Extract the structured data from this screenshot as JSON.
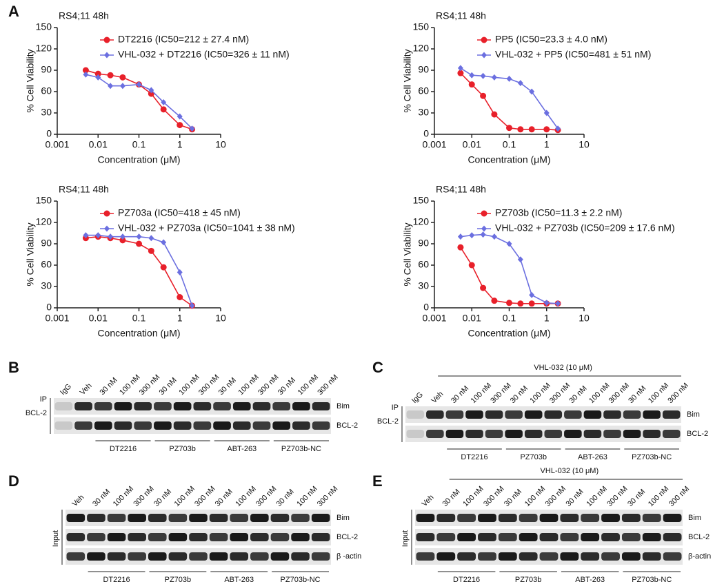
{
  "panel_labels": [
    "A",
    "B",
    "C",
    "D",
    "E"
  ],
  "chart_data": [
    {
      "type": "line",
      "title": "RS4;11  48h",
      "xlabel": "Concentration (μM)",
      "ylabel": "% Cell Viability",
      "xlog": true,
      "x": [
        0.005,
        0.01,
        0.02,
        0.04,
        0.1,
        0.2,
        0.4,
        1,
        2
      ],
      "xlim": [
        0.001,
        10
      ],
      "xticks": [
        0.001,
        0.01,
        0.1,
        1,
        10
      ],
      "ylim": [
        0,
        150
      ],
      "yticks": [
        0,
        30,
        60,
        90,
        120,
        150
      ],
      "series": [
        {
          "name": "DT2216 (IC50=212 ± 27.4 nM)",
          "color": "#e8202a",
          "marker": "circle",
          "values": [
            90,
            85,
            83,
            80,
            70,
            57,
            35,
            13,
            7
          ]
        },
        {
          "name": "VHL-032 + DT2216 (IC50=326 ± 11 nM)",
          "color": "#6b6fe0",
          "marker": "diamond",
          "values": [
            84,
            80,
            68,
            68,
            70,
            62,
            45,
            25,
            8
          ]
        }
      ]
    },
    {
      "type": "line",
      "title": "RS4;11  48h",
      "xlabel": "Concentration (μM)",
      "ylabel": "% Cell Viability",
      "xlog": true,
      "x": [
        0.005,
        0.01,
        0.02,
        0.04,
        0.1,
        0.2,
        0.4,
        1,
        2
      ],
      "xlim": [
        0.001,
        10
      ],
      "xticks": [
        0.001,
        0.01,
        0.1,
        1,
        10
      ],
      "ylim": [
        0,
        150
      ],
      "yticks": [
        0,
        30,
        60,
        90,
        120,
        150
      ],
      "series": [
        {
          "name": "PP5 (IC50=23.3 ± 4.0 nM)",
          "color": "#e8202a",
          "marker": "circle",
          "values": [
            86,
            70,
            54,
            28,
            9,
            7,
            7,
            7,
            6
          ]
        },
        {
          "name": "VHL-032 + PP5 (IC50=481 ± 51 nM)",
          "color": "#6b6fe0",
          "marker": "diamond",
          "values": [
            93,
            83,
            82,
            80,
            78,
            72,
            60,
            30,
            8
          ]
        }
      ]
    },
    {
      "type": "line",
      "title": "RS4;11  48h",
      "xlabel": "Concentration (μM)",
      "ylabel": "% Cell Viability",
      "xlog": true,
      "x": [
        0.005,
        0.01,
        0.02,
        0.04,
        0.1,
        0.2,
        0.4,
        1,
        2
      ],
      "xlim": [
        0.001,
        10
      ],
      "xticks": [
        0.001,
        0.01,
        0.1,
        1,
        10
      ],
      "ylim": [
        0,
        150
      ],
      "yticks": [
        0,
        30,
        60,
        90,
        120,
        150
      ],
      "series": [
        {
          "name": "PZ703a (IC50=418 ± 45 nM)",
          "color": "#e8202a",
          "marker": "circle",
          "values": [
            98,
            100,
            98,
            95,
            90,
            80,
            57,
            15,
            3
          ]
        },
        {
          "name": "VHL-032 + PZ703a (IC50=1041 ± 38 nM)",
          "color": "#6b6fe0",
          "marker": "diamond",
          "values": [
            102,
            102,
            100,
            100,
            100,
            98,
            92,
            50,
            3
          ]
        }
      ]
    },
    {
      "type": "line",
      "title": "RS4;11  48h",
      "xlabel": "Concentration (μM)",
      "ylabel": "% Cell Viability",
      "xlog": true,
      "x": [
        0.005,
        0.01,
        0.02,
        0.04,
        0.1,
        0.2,
        0.4,
        1,
        2
      ],
      "xlim": [
        0.001,
        10
      ],
      "xticks": [
        0.001,
        0.01,
        0.1,
        1,
        10
      ],
      "ylim": [
        0,
        150
      ],
      "yticks": [
        0,
        30,
        60,
        90,
        120,
        150
      ],
      "series": [
        {
          "name": "PZ703b (IC50=11.3 ± 2.2 nM)",
          "color": "#e8202a",
          "marker": "circle",
          "values": [
            85,
            60,
            28,
            10,
            7,
            6,
            6,
            6,
            6
          ]
        },
        {
          "name": "VHL-032 + PZ703b (IC50=209 ± 17.6 nM)",
          "color": "#6b6fe0",
          "marker": "diamond",
          "values": [
            100,
            102,
            103,
            100,
            90,
            68,
            18,
            7,
            6
          ]
        }
      ]
    }
  ],
  "blots": [
    {
      "lanes": [
        "IgG",
        "Veh",
        "30 nM",
        "100 nM",
        "300 nM",
        "30 nM",
        "100 nM",
        "300 nM",
        "30 nM",
        "100 nM",
        "300 nM",
        "30 nM",
        "100 nM",
        "300 nM"
      ],
      "rows": [
        "Bim",
        "BCL-2"
      ],
      "groups": [
        "DT2216",
        "PZ703b",
        "ABT-263",
        "PZ703b-NC"
      ],
      "side": [
        "IP",
        "BCL-2"
      ]
    },
    {
      "header": "VHL-032 (10 μM)",
      "lanes": [
        "IgG",
        "Veh",
        "30 nM",
        "100 nM",
        "300 nM",
        "30 nM",
        "100 nM",
        "300 nM",
        "30 nM",
        "100 nM",
        "300 nM",
        "30 nM",
        "100 nM",
        "300 nM"
      ],
      "rows": [
        "Bim",
        "BCL-2"
      ],
      "groups": [
        "DT2216",
        "PZ703b",
        "ABT-263",
        "PZ703b-NC"
      ],
      "side": [
        "IP",
        "BCL-2"
      ]
    },
    {
      "lanes": [
        "Veh",
        "30 nM",
        "100 nM",
        "300 nM",
        "30 nM",
        "100 nM",
        "300 nM",
        "30 nM",
        "100 nM",
        "300 nM",
        "30 nM",
        "100 nM",
        "300 nM"
      ],
      "rows": [
        "Bim",
        "BCL-2",
        "β -actin"
      ],
      "groups": [
        "DT2216",
        "PZ703b",
        "ABT-263",
        "PZ703b-NC"
      ],
      "side": [
        "Input"
      ]
    },
    {
      "header": "VHL-032 (10 μM)",
      "lanes": [
        "Veh",
        "30 nM",
        "100 nM",
        "300 nM",
        "30 nM",
        "100 nM",
        "300 nM",
        "30 nM",
        "100 nM",
        "300 nM",
        "30 nM",
        "100 nM",
        "300 nM"
      ],
      "rows": [
        "Bim",
        "BCL-2",
        "β-actin"
      ],
      "groups": [
        "DT2216",
        "PZ703b",
        "ABT-263",
        "PZ703b-NC"
      ],
      "side": [
        "Input"
      ]
    }
  ]
}
